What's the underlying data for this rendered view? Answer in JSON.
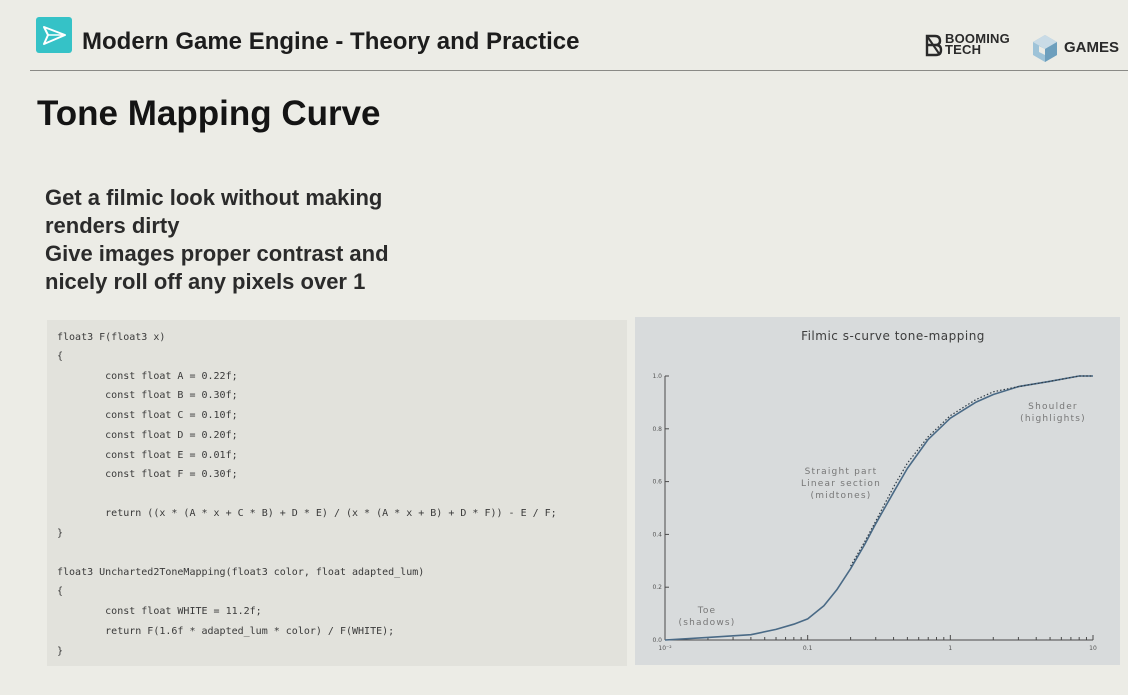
{
  "header": {
    "course_title": "Modern Game Engine - Theory and Practice",
    "logo_icon": "paper-plane-icon",
    "brand_booming": [
      "BOOMING",
      "TECH"
    ],
    "brand_games": "GAMES",
    "accent_color": "#35c2c7"
  },
  "slide": {
    "title": "Tone Mapping Curve",
    "bullets": [
      "Get a filmic look without making",
      "renders dirty",
      "Give images proper contrast and",
      "nicely roll off any pixels over 1"
    ]
  },
  "code": {
    "lines": [
      "float3 F(float3 x)",
      "{",
      "        const float A = 0.22f;",
      "        const float B = 0.30f;",
      "        const float C = 0.10f;",
      "        const float D = 0.20f;",
      "        const float E = 0.01f;",
      "        const float F = 0.30f;",
      "",
      "        return ((x * (A * x + C * B) + D * E) / (x * (A * x + B) + D * F)) - E / F;",
      "}",
      "",
      "float3 Uncharted2ToneMapping(float3 color, float adapted_lum)",
      "{",
      "        const float WHITE = 11.2f;",
      "        return F(1.6f * adapted_lum * color) / F(WHITE);",
      "}"
    ]
  },
  "chart_data": {
    "type": "line",
    "title": "Filmic s-curve tone-mapping",
    "x_scale": "log",
    "xlim": [
      0.01,
      10
    ],
    "ylim": [
      0,
      1
    ],
    "x_tick_labels": [
      "10⁻²",
      "0.1",
      "1",
      "10"
    ],
    "y_tick_labels": [
      "0.0",
      "0.2",
      "0.4",
      "0.6",
      "0.8",
      "1.0"
    ],
    "series": [
      {
        "style": "solid",
        "x": [
          0.01,
          0.02,
          0.04,
          0.06,
          0.08,
          0.1,
          0.13,
          0.16,
          0.2,
          0.25,
          0.3,
          0.4,
          0.5,
          0.7,
          1.0,
          1.5,
          2,
          3,
          5,
          8,
          10
        ],
        "y": [
          0.0,
          0.01,
          0.02,
          0.04,
          0.06,
          0.08,
          0.13,
          0.19,
          0.27,
          0.36,
          0.44,
          0.56,
          0.65,
          0.76,
          0.84,
          0.9,
          0.93,
          0.96,
          0.98,
          1.0,
          1.0
        ]
      },
      {
        "style": "dotted",
        "x": [
          0.2,
          0.25,
          0.3,
          0.4,
          0.5,
          0.7,
          1.0,
          1.5,
          2,
          3,
          5,
          8,
          10
        ],
        "y": [
          0.28,
          0.37,
          0.45,
          0.58,
          0.67,
          0.77,
          0.85,
          0.91,
          0.94,
          0.96,
          0.98,
          1.0,
          1.0
        ]
      }
    ],
    "annotations": [
      {
        "lines": [
          "Shoulder",
          "(highlights)"
        ]
      },
      {
        "lines": [
          "Straight part",
          "Linear section",
          "(midtones)"
        ]
      },
      {
        "lines": [
          "Toe",
          "(shadows)"
        ]
      }
    ]
  }
}
